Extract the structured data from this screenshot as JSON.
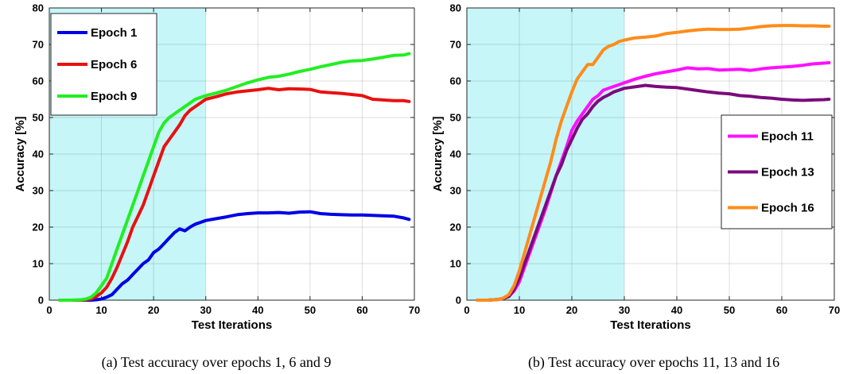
{
  "shade_color": "#c6f6f8",
  "chart_data": [
    {
      "type": "line",
      "caption": "(a) Test accuracy over epochs 1, 6 and 9",
      "xlabel": "Test Iterations",
      "ylabel": "Accuracy [%]",
      "xlim": [
        0,
        70
      ],
      "ylim": [
        0,
        80
      ],
      "xticks": [
        0,
        10,
        20,
        30,
        40,
        50,
        60,
        70
      ],
      "yticks": [
        0,
        10,
        20,
        30,
        40,
        50,
        60,
        70,
        80
      ],
      "grid": true,
      "legend_position": "top-left",
      "shaded_region": [
        0,
        30
      ],
      "series": [
        {
          "name": "Epoch 1",
          "color": "#0000e6",
          "x": [
            2,
            4,
            6,
            8,
            9,
            10,
            11,
            12,
            13,
            14,
            15,
            16,
            17,
            18,
            19,
            20,
            21,
            22,
            23,
            24,
            25,
            26,
            27,
            28,
            29,
            30,
            32,
            34,
            36,
            38,
            40,
            42,
            44,
            46,
            48,
            50,
            52,
            54,
            56,
            58,
            60,
            62,
            64,
            66,
            68,
            69
          ],
          "y": [
            0,
            0,
            0,
            0,
            0.1,
            0.3,
            0.8,
            1.5,
            3,
            4.5,
            5.5,
            7,
            8.5,
            10,
            11,
            13,
            14,
            15.5,
            17,
            18.5,
            19.5,
            19,
            20,
            20.8,
            21.3,
            21.8,
            22.3,
            22.8,
            23.4,
            23.7,
            23.9,
            23.9,
            24,
            23.8,
            24.1,
            24.2,
            23.7,
            23.5,
            23.4,
            23.3,
            23.3,
            23.2,
            23.1,
            23,
            22.5,
            22.1
          ]
        },
        {
          "name": "Epoch 6",
          "color": "#ea1010",
          "x": [
            2,
            4,
            6,
            7,
            8,
            9,
            10,
            11,
            12,
            13,
            14,
            15,
            16,
            17,
            18,
            19,
            20,
            21,
            22,
            23,
            24,
            25,
            26,
            27,
            28,
            29,
            30,
            32,
            34,
            36,
            38,
            40,
            42,
            44,
            46,
            48,
            50,
            52,
            54,
            56,
            58,
            60,
            62,
            64,
            66,
            68,
            69
          ],
          "y": [
            0,
            0,
            0,
            0.1,
            0.3,
            1,
            2,
            3.5,
            6,
            9,
            12.5,
            16,
            20,
            23,
            26,
            30,
            34,
            38,
            42,
            44,
            46,
            48,
            50.5,
            52,
            53,
            54,
            55,
            55.7,
            56.5,
            57,
            57.3,
            57.6,
            58,
            57.6,
            57.9,
            57.8,
            57.7,
            57,
            56.8,
            56.6,
            56.3,
            56,
            55,
            54.8,
            54.6,
            54.6,
            54.4
          ]
        },
        {
          "name": "Epoch 9",
          "color": "#22ee22",
          "x": [
            2,
            4,
            6,
            7,
            8,
            9,
            10,
            11,
            12,
            13,
            14,
            15,
            16,
            17,
            18,
            19,
            20,
            21,
            22,
            23,
            24,
            25,
            26,
            27,
            28,
            29,
            30,
            32,
            34,
            36,
            38,
            40,
            42,
            44,
            46,
            48,
            50,
            52,
            54,
            56,
            58,
            60,
            62,
            64,
            66,
            68,
            69
          ],
          "y": [
            0,
            0,
            0.1,
            0.3,
            0.8,
            2,
            4,
            6,
            10,
            14,
            18,
            22,
            26,
            30,
            34,
            38,
            42,
            46,
            48.5,
            50,
            51,
            52,
            53,
            54,
            55,
            55.5,
            56,
            56.7,
            57.5,
            58.5,
            59.5,
            60.3,
            61,
            61.3,
            61.9,
            62.6,
            63.2,
            63.9,
            64.5,
            65.1,
            65.5,
            65.6,
            66,
            66.5,
            67,
            67.1,
            67.5
          ]
        }
      ]
    },
    {
      "type": "line",
      "caption": "(b) Test accuracy over epochs 11, 13 and 16",
      "xlabel": "Test Iterations",
      "ylabel": "Accuracy [%]",
      "xlim": [
        0,
        70
      ],
      "ylim": [
        0,
        80
      ],
      "xticks": [
        0,
        10,
        20,
        30,
        40,
        50,
        60,
        70
      ],
      "yticks": [
        0,
        10,
        20,
        30,
        40,
        50,
        60,
        70,
        80
      ],
      "grid": true,
      "legend_position": "right",
      "shaded_region": [
        0,
        30
      ],
      "series": [
        {
          "name": "Epoch 11",
          "color": "#ff10ff",
          "x": [
            2,
            4,
            6,
            7,
            8,
            9,
            10,
            11,
            12,
            13,
            14,
            15,
            16,
            17,
            18,
            19,
            20,
            21,
            22,
            23,
            24,
            25,
            26,
            27,
            28,
            29,
            30,
            32,
            34,
            36,
            38,
            40,
            42,
            44,
            46,
            48,
            50,
            52,
            54,
            56,
            58,
            60,
            62,
            64,
            66,
            68,
            69
          ],
          "y": [
            0,
            0,
            0.2,
            0.5,
            1,
            2.5,
            5,
            9,
            13,
            17,
            21,
            25,
            29.5,
            34,
            38,
            42,
            46.5,
            49,
            51,
            53,
            55,
            56,
            57.5,
            58,
            58.5,
            59,
            59.5,
            60.5,
            61.3,
            62,
            62.5,
            63,
            63.6,
            63.3,
            63.4,
            63,
            63.1,
            63.2,
            62.9,
            63.3,
            63.6,
            63.8,
            64,
            64.3,
            64.7,
            64.9,
            65
          ]
        },
        {
          "name": "Epoch 13",
          "color": "#7a0b7c",
          "x": [
            2,
            4,
            6,
            7,
            8,
            9,
            10,
            11,
            12,
            13,
            14,
            15,
            16,
            17,
            18,
            19,
            20,
            21,
            22,
            23,
            24,
            25,
            26,
            27,
            28,
            29,
            30,
            32,
            34,
            36,
            38,
            40,
            42,
            44,
            46,
            48,
            50,
            52,
            54,
            56,
            58,
            60,
            62,
            64,
            66,
            68,
            69
          ],
          "y": [
            0,
            0,
            0.2,
            0.5,
            1,
            3,
            6,
            10,
            14,
            18,
            22,
            26,
            30,
            34,
            37,
            41,
            44,
            47,
            49.5,
            51,
            53,
            54.5,
            55.5,
            56.2,
            57,
            57.5,
            58,
            58.4,
            58.8,
            58.5,
            58.3,
            58.2,
            57.8,
            57.4,
            57,
            56.7,
            56.5,
            56,
            55.8,
            55.5,
            55.3,
            55,
            54.8,
            54.7,
            54.8,
            54.9,
            55
          ]
        },
        {
          "name": "Epoch 16",
          "color": "#ff8c1a",
          "x": [
            2,
            4,
            6,
            7,
            8,
            9,
            10,
            11,
            12,
            13,
            14,
            15,
            16,
            17,
            18,
            19,
            20,
            21,
            22,
            23,
            24,
            25,
            26,
            27,
            28,
            29,
            30,
            32,
            34,
            36,
            38,
            40,
            42,
            44,
            46,
            48,
            50,
            52,
            54,
            56,
            58,
            60,
            62,
            64,
            66,
            68,
            69
          ],
          "y": [
            0,
            0,
            0.2,
            0.6,
            1.5,
            4,
            8,
            13,
            18,
            23,
            28,
            33,
            38,
            44,
            49,
            53,
            57,
            60.5,
            62.5,
            64.5,
            64.5,
            66.5,
            68.5,
            69.5,
            70,
            70.8,
            71.2,
            71.8,
            72,
            72.3,
            73,
            73.3,
            73.7,
            74,
            74.2,
            74.1,
            74.1,
            74.2,
            74.5,
            74.9,
            75.1,
            75.2,
            75.2,
            75.1,
            75.1,
            75,
            75
          ]
        }
      ]
    }
  ]
}
